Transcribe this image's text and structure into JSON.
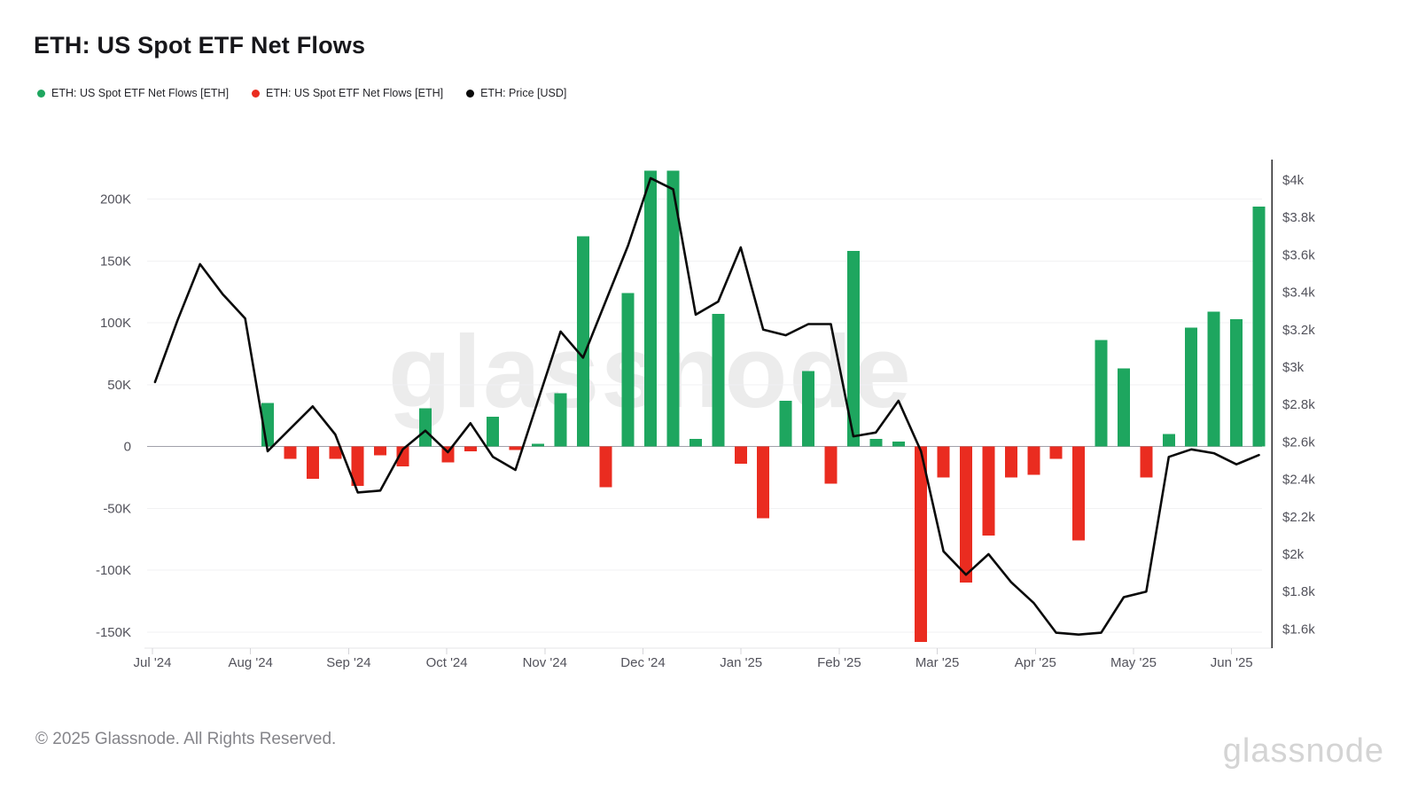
{
  "title": "ETH: US Spot ETF Net Flows",
  "legend": [
    {
      "label": "ETH: US Spot ETF Net Flows [ETH]",
      "color": "#1ea65f",
      "marker": "circle"
    },
    {
      "label": "ETH: US Spot ETF Net Flows [ETH]",
      "color": "#ea2c20",
      "marker": "circle"
    },
    {
      "label": "ETH: Price [USD]",
      "color": "#0a0a0a",
      "marker": "circle"
    }
  ],
  "watermark_text": "glassnode",
  "footer": {
    "copyright": "© 2025 Glassnode. All Rights Reserved.",
    "brand": "glassnode"
  },
  "colors": {
    "positive_bar": "#1ea65f",
    "negative_bar": "#ea2c20",
    "price_line": "#0a0a0a",
    "gridline": "#f1f1f3",
    "zero_line": "#a1a1aa",
    "axis_line": "#27272a",
    "baseline": "#e4e4e7",
    "tick": "#d4d4d8",
    "axis_text": "#52525b"
  },
  "chart_data": {
    "type": "bar+line",
    "title": "ETH: US Spot ETF Net Flows",
    "left_axis": {
      "unit": "ETH (thousands)",
      "tick_labels": [
        "200K",
        "150K",
        "100K",
        "50K",
        "0",
        "-50K",
        "-100K",
        "-150K"
      ],
      "tick_values_k": [
        200,
        150,
        100,
        50,
        0,
        -50,
        -100,
        -150
      ],
      "range_k": [
        -175,
        235
      ],
      "grid": true
    },
    "right_axis": {
      "unit": "USD",
      "tick_labels": [
        "$4k",
        "$3.8k",
        "$3.6k",
        "$3.4k",
        "$3.2k",
        "$3k",
        "$2.8k",
        "$2.6k",
        "$2.4k",
        "$2.2k",
        "$2k",
        "$1.8k",
        "$1.6k"
      ],
      "tick_values": [
        4000,
        3800,
        3600,
        3400,
        3200,
        3000,
        2800,
        2600,
        2400,
        2200,
        2000,
        1800,
        1600
      ],
      "grid": false
    },
    "x_axis": {
      "month_tick_labels": [
        "Jul '24",
        "Aug '24",
        "Sep '24",
        "Oct '24",
        "Nov '24",
        "Dec '24",
        "Jan '25",
        "Feb '25",
        "Mar '25",
        "Apr '25",
        "May '25",
        "Jun '25"
      ]
    },
    "bars": {
      "name": "ETH: US Spot ETF Net Flows [ETH]",
      "unit": "thousand ETH per week",
      "dates": [
        "2024-08-04",
        "2024-08-11",
        "2024-08-18",
        "2024-08-25",
        "2024-09-01",
        "2024-09-08",
        "2024-09-15",
        "2024-09-22",
        "2024-09-29",
        "2024-10-06",
        "2024-10-13",
        "2024-10-20",
        "2024-10-27",
        "2024-11-03",
        "2024-11-10",
        "2024-11-17",
        "2024-11-24",
        "2024-12-01",
        "2024-12-08",
        "2024-12-15",
        "2024-12-22",
        "2024-12-29",
        "2025-01-05",
        "2025-01-12",
        "2025-01-19",
        "2025-01-26",
        "2025-02-02",
        "2025-02-09",
        "2025-02-16",
        "2025-02-23",
        "2025-03-02",
        "2025-03-09",
        "2025-03-16",
        "2025-03-23",
        "2025-03-30",
        "2025-04-06",
        "2025-04-13",
        "2025-04-20",
        "2025-04-27",
        "2025-05-04",
        "2025-05-11",
        "2025-05-18",
        "2025-05-25",
        "2025-06-01",
        "2025-06-08"
      ],
      "values_k_eth": [
        35,
        -10,
        -26,
        -10,
        -32,
        -7,
        -16,
        31,
        -13,
        -4,
        24,
        -3,
        2,
        43,
        170,
        -33,
        124,
        223,
        223,
        6,
        107,
        -14,
        -58,
        37,
        61,
        -30,
        158,
        6,
        4,
        -158,
        -25,
        -110,
        -72,
        -25,
        -23,
        -10,
        -76,
        86,
        63,
        -25,
        10,
        96,
        109,
        103,
        194
      ]
    },
    "line": {
      "name": "ETH: Price [USD]",
      "unit": "USD",
      "dates": [
        "2024-06-30",
        "2024-07-07",
        "2024-07-14",
        "2024-07-21",
        "2024-07-28",
        "2024-08-04",
        "2024-08-11",
        "2024-08-18",
        "2024-08-25",
        "2024-09-01",
        "2024-09-08",
        "2024-09-15",
        "2024-09-22",
        "2024-09-29",
        "2024-10-06",
        "2024-10-13",
        "2024-10-20",
        "2024-10-27",
        "2024-11-03",
        "2024-11-10",
        "2024-11-17",
        "2024-11-24",
        "2024-12-01",
        "2024-12-08",
        "2024-12-15",
        "2024-12-22",
        "2024-12-29",
        "2025-01-05",
        "2025-01-12",
        "2025-01-19",
        "2025-01-26",
        "2025-02-02",
        "2025-02-09",
        "2025-02-16",
        "2025-02-23",
        "2025-03-02",
        "2025-03-09",
        "2025-03-16",
        "2025-03-23",
        "2025-03-30",
        "2025-04-06",
        "2025-04-13",
        "2025-04-20",
        "2025-04-27",
        "2025-05-04",
        "2025-05-11",
        "2025-05-18",
        "2025-05-25",
        "2025-06-01",
        "2025-06-08"
      ],
      "values_usd": [
        2920,
        3250,
        3550,
        3390,
        3260,
        2550,
        2670,
        2790,
        2640,
        2330,
        2340,
        2560,
        2660,
        2545,
        2700,
        2520,
        2450,
        2820,
        3190,
        3050,
        3350,
        3650,
        4010,
        3950,
        3280,
        3350,
        3640,
        3200,
        3170,
        3230,
        3230,
        2630,
        2650,
        2820,
        2550,
        2015,
        1890,
        2000,
        1850,
        1740,
        1580,
        1570,
        1580,
        1770,
        1800,
        2520,
        2560,
        2540,
        2480,
        2530
      ]
    }
  }
}
